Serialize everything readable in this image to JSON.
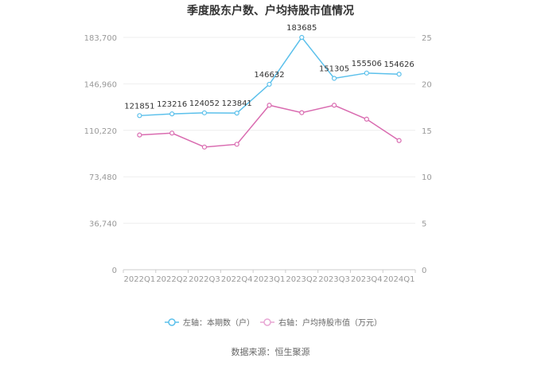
{
  "chart_data": {
    "type": "line",
    "title": "季度股东户数、户均持股市值情况",
    "categories": [
      "2022Q1",
      "2022Q2",
      "2022Q3",
      "2022Q4",
      "2023Q1",
      "2023Q2",
      "2023Q3",
      "2023Q4",
      "2024Q1"
    ],
    "left_axis": {
      "min": 0,
      "max": 183700,
      "ticks": [
        0,
        36740,
        73480,
        110220,
        146960,
        183700
      ],
      "tick_labels": [
        "0",
        "36,740",
        "73,480",
        "110,220",
        "146,960",
        "183,700"
      ]
    },
    "right_axis": {
      "min": 0,
      "max": 25,
      "ticks": [
        0,
        5,
        10,
        15,
        20,
        25
      ],
      "tick_labels": [
        "0",
        "5",
        "10",
        "15",
        "20",
        "25"
      ]
    },
    "series": [
      {
        "name": "左轴：本期数（户）",
        "axis": "left",
        "color": "#5bc0eb",
        "values": [
          121851,
          123216,
          124052,
          123841,
          146632,
          183685,
          151305,
          155506,
          154626
        ],
        "labels": [
          "121851",
          "123216",
          "124052",
          "123841",
          "146632",
          "183685",
          "151305",
          "155506",
          "154626"
        ]
      },
      {
        "name": "右轴：户均持股市值（万元）",
        "axis": "right",
        "color": "#d96bb0",
        "values": [
          14.5,
          14.7,
          13.2,
          13.5,
          17.7,
          16.9,
          17.7,
          16.2,
          13.9
        ]
      }
    ],
    "legend_position": "bottom",
    "grid": true
  },
  "footer": {
    "source": "数据来源：恒生聚源"
  }
}
